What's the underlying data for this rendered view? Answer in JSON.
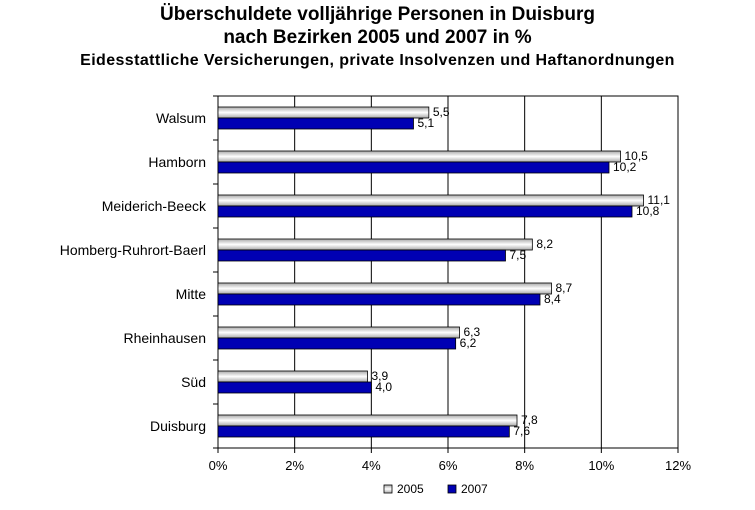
{
  "chart_data": {
    "type": "bar",
    "orientation": "horizontal",
    "title": "Überschuldete volljährige Personen in Duisburg",
    "title_line2": "nach Bezirken 2005 und 2007 in %",
    "subtitle": "Eidesstattliche Versicherungen, private Insolvenzen und Haftanordnungen",
    "categories": [
      "Walsum",
      "Hamborn",
      "Meiderich-Beeck",
      "Homberg-Ruhrort-Baerl",
      "Mitte",
      "Rheinhausen",
      "Süd",
      "Duisburg"
    ],
    "series": [
      {
        "name": "2005",
        "values": [
          5.5,
          10.5,
          11.1,
          8.2,
          8.7,
          6.3,
          3.9,
          7.8
        ],
        "labels": [
          "5,5",
          "10,5",
          "11,1",
          "8,2",
          "8,7",
          "6,3",
          "3,9",
          "7,8"
        ],
        "color": "#d9d9d9"
      },
      {
        "name": "2007",
        "values": [
          5.1,
          10.2,
          10.8,
          7.5,
          8.4,
          6.2,
          4.0,
          7.6
        ],
        "labels": [
          "5,1",
          "10,2",
          "10,8",
          "7,5",
          "8,4",
          "6,2",
          "4,0",
          "7,6"
        ],
        "color": "#0000b3"
      }
    ],
    "x_ticks": [
      "0%",
      "2%",
      "4%",
      "6%",
      "8%",
      "10%",
      "12%"
    ],
    "xlim": [
      0,
      12
    ],
    "grid": true,
    "legend_position": "bottom"
  }
}
